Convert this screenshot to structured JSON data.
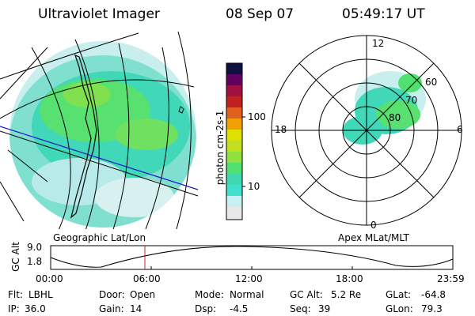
{
  "header": {
    "title": "Ultraviolet Imager",
    "date": "08 Sep 07",
    "time": "05:49:17 UT"
  },
  "colorbar": {
    "unit_label": "photon cm-2s-1",
    "ticks": [
      "100",
      "10"
    ],
    "colors": [
      "#e8e8e8",
      "#c8f0f0",
      "#40e0d0",
      "#40d8b0",
      "#50e070",
      "#90e040",
      "#c0e020",
      "#e0e000",
      "#f0a000",
      "#e06020",
      "#c02020",
      "#a01040",
      "#600060",
      "#101040"
    ]
  },
  "left_panel": {
    "caption": "Geographic Lat/Lon",
    "land_color": "#1a1a1a",
    "coastline_color": "#000000",
    "terminator_color": "#1a1acc"
  },
  "polar_panel": {
    "caption": "Apex MLat/MLT",
    "mlt_labels": {
      "top": "12",
      "left": "18",
      "right": "6",
      "bottom": "0"
    },
    "lat_labels": [
      "80",
      "70",
      "60"
    ]
  },
  "altitude_plot": {
    "ylabel": "GC Alt",
    "yticks": [
      "9.0",
      "1.8"
    ],
    "xticks": [
      "00:00",
      "06:00",
      "12:00",
      "18:00",
      "23:59"
    ],
    "current_time_marker": "05:49",
    "marker_color": "#d02020"
  },
  "status": {
    "row1": [
      {
        "key": "Flt:",
        "value": "LBHL"
      },
      {
        "key": "Door:",
        "value": "Open"
      },
      {
        "key": "Mode:",
        "value": "Normal"
      },
      {
        "key": "GC Alt:",
        "value": "5.2 Re"
      },
      {
        "key": "GLat:",
        "value": "-64.8"
      }
    ],
    "row2": [
      {
        "key": "IP:",
        "value": "36.0"
      },
      {
        "key": "Gain:",
        "value": "14"
      },
      {
        "key": "Dsp:",
        "value": "-4.5"
      },
      {
        "key": "Seq:",
        "value": "39"
      },
      {
        "key": "GLon:",
        "value": "79.3"
      }
    ]
  }
}
